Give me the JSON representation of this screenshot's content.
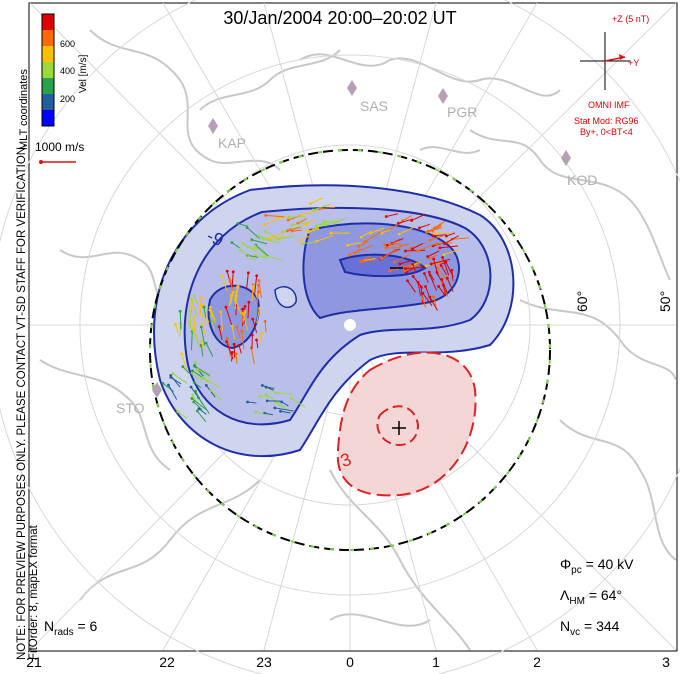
{
  "title": "30/Jan/2004 20:00–20:02 UT",
  "side_note": {
    "line1": "NOTE: FOR PREVIEW PURPOSES ONLY. PLEASE CONTACT VT-SD STAFF FOR VERIFICATION.",
    "line2": "FitOrder: 8,  mapEX format"
  },
  "coord_label": "MLT coordinates",
  "colorbar": {
    "title": "Vel [m/s]",
    "ticks": [
      "600",
      "400",
      "200"
    ],
    "colors": [
      "#e00000",
      "#ff6a00",
      "#ffc000",
      "#9bd93b",
      "#2aa24a",
      "#1f5fa0",
      "#0000ff"
    ]
  },
  "scale_vector": "1000 m/s",
  "imf": {
    "z_label": "+Z (5 nT)",
    "y_label": "+Y",
    "source": "OMNI IMF",
    "stat_mod": "Stat Mod: RG96",
    "condition": "By+, 0<BT<4"
  },
  "stations": [
    "SAS",
    "PGR",
    "KAP",
    "KOD",
    "STO"
  ],
  "latitude_labels": [
    "60°",
    "50°"
  ],
  "mlt_labels": [
    "21",
    "22",
    "23",
    "0",
    "1",
    "2",
    "3"
  ],
  "contour_labels": [
    "-9",
    "3"
  ],
  "stats": {
    "phi_symbol": "Φ",
    "phi_sub": "pc",
    "phi_value": "= 40 kV",
    "lambda_symbol": "Λ",
    "lambda_sub": "HM",
    "lambda_value": "= 64°",
    "nvc_symbol": "N",
    "nvc_sub": "vc",
    "nvc_value": "= 344",
    "nrads_symbol": "N",
    "nrads_sub": "rads",
    "nrads_value": "= 6"
  }
}
